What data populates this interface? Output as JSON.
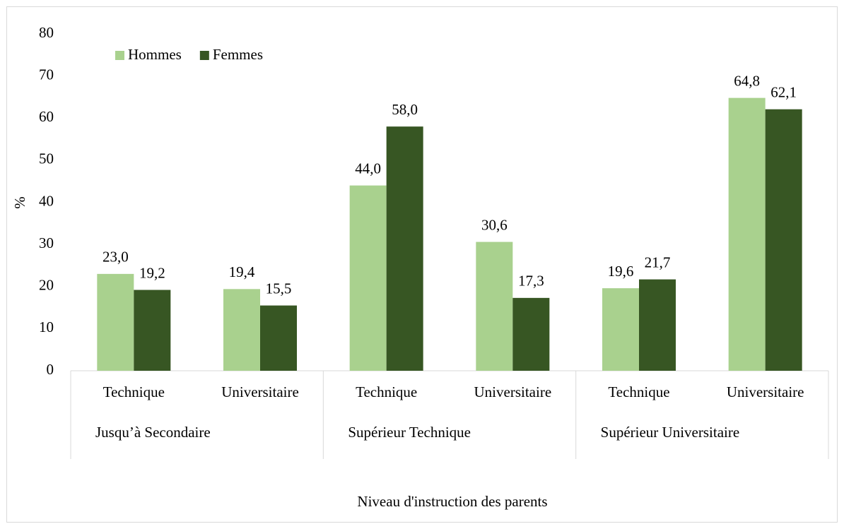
{
  "chart_data": {
    "type": "bar",
    "y_label": "%",
    "x_label": "Niveau d'instruction des parents",
    "categories": [
      "Technique",
      "Universitaire",
      "Technique",
      "Universitaire",
      "Technique",
      "Universitaire"
    ],
    "groups": [
      "Jusqu’à Secondaire",
      "Supérieur Technique",
      "Supérieur Universitaire"
    ],
    "series": [
      {
        "name": "Hommes",
        "color": "#a9d18e",
        "values": [
          23.0,
          19.4,
          44.0,
          30.6,
          19.6,
          64.8
        ],
        "value_labels": [
          "23,0",
          "19,4",
          "44,0",
          "30,6",
          "19,6",
          "64,8"
        ]
      },
      {
        "name": "Femmes",
        "color": "#375623",
        "values": [
          19.2,
          15.5,
          58.0,
          17.3,
          21.7,
          62.1
        ],
        "value_labels": [
          "19,2",
          "15,5",
          "58,0",
          "17,3",
          "21,7",
          "62,1"
        ]
      }
    ],
    "ylim": [
      0,
      80
    ],
    "yticks": [
      0,
      10,
      20,
      30,
      40,
      50,
      60,
      70,
      80
    ],
    "grid": false,
    "legend": "top-left"
  }
}
